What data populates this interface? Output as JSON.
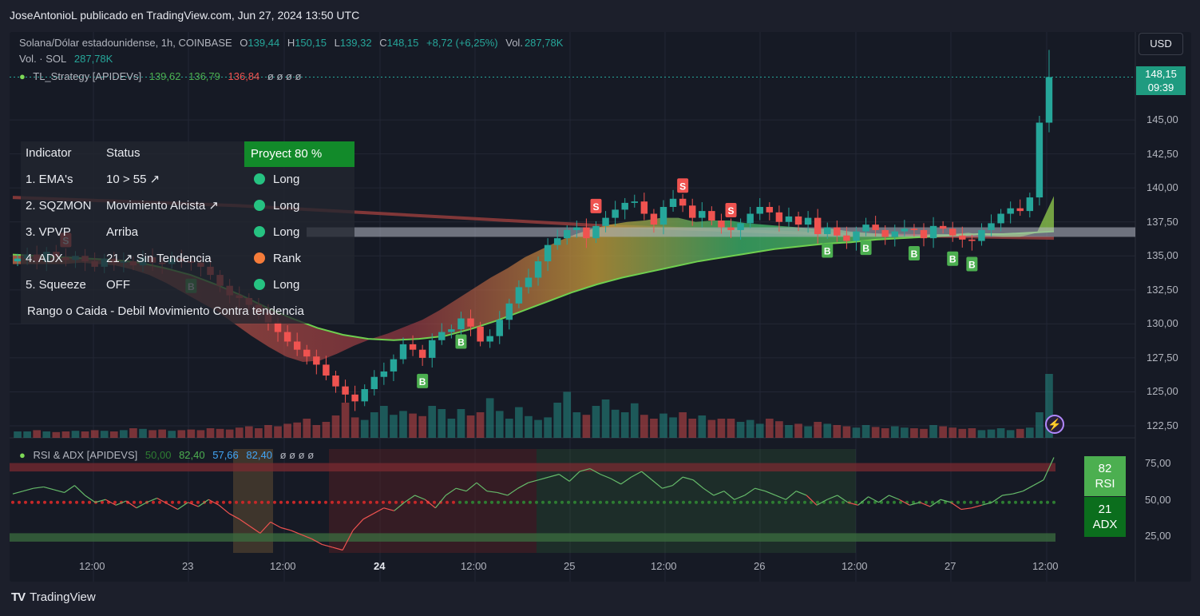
{
  "header": {
    "byline": "JoseAntonioL publicado en TradingView.com, Jun 27, 2024 13:50 UTC"
  },
  "legend": {
    "symbol": "Solana/Dólar estadounidense, 1h, COINBASE",
    "o_label": "O",
    "o_value": "139,44",
    "h_label": "H",
    "h_value": "150,15",
    "l_label": "L",
    "l_value": "139,32",
    "c_label": "C",
    "c_value": "148,15",
    "change": "+8,72 (+6,25%)",
    "vol_label": "Vol.",
    "vol_value": "287,78K",
    "vol_sol_label": "Vol. · SOL",
    "vol_sol_value": "287,78K",
    "strategy_label": "TL_Strategy [APIDEVs]",
    "strategy_v1": "139,62",
    "strategy_v2": "136,79",
    "strategy_v3": "136,84",
    "strategy_empty": "ø ø ø ø",
    "rsi_label": "RSI & ADX [APIDEVS]",
    "rsi_v1": "50,00",
    "rsi_v2": "82,40",
    "rsi_v3": "57,66",
    "rsi_v4": "82,40",
    "rsi_empty": "ø ø ø ø"
  },
  "indicator_table": {
    "col_indicator": "Indicator",
    "col_status": "Status",
    "projection": "Proyect 80 %",
    "rows": [
      {
        "name": "1. EMA's",
        "status": "10 > 55 ↗",
        "signal": "Long",
        "dot": "#26c281"
      },
      {
        "name": "2. SQZMON",
        "status": "Movimiento Alcista ↗",
        "signal": "Long",
        "dot": "#26c281"
      },
      {
        "name": "3. VPVP",
        "status": "Arriba",
        "signal": "Long",
        "dot": "#26c281"
      },
      {
        "name": "4. ADX",
        "status": "21 ↗ Sin Tendencia",
        "signal": "Rank",
        "dot": "#f57c3a"
      },
      {
        "name": "5. Squeeze",
        "status": "OFF",
        "signal": "Long",
        "dot": "#26c281"
      }
    ],
    "footer": "Rango o Caida - Debil Movimiento Contra tendencia"
  },
  "controls": {
    "currency": "USD",
    "last_price": "148,15",
    "countdown": "09:39",
    "bolt_icon": "lightning-icon"
  },
  "rsi_panel": {
    "rsi_value": "82",
    "rsi_label": "RSI",
    "adx_value": "21",
    "adx_label": "ADX",
    "y_ticks": [
      "75,00",
      "50,00",
      "25,00"
    ]
  },
  "branding": {
    "logo": "TV",
    "name": "TradingView"
  },
  "colors": {
    "up": "#26a69a",
    "down": "#ef5350",
    "rsi_box": "#4caf50",
    "adx_box": "#0b6e1d",
    "projection": "#128a2a"
  },
  "chart_data": {
    "type": "candlestick",
    "symbol": "SOL/USD",
    "timeframe": "1h",
    "ylim": [
      121.5,
      151
    ],
    "y_ticks": [
      "145,00",
      "142,50",
      "140,00",
      "137,50",
      "135,00",
      "132,50",
      "130,00",
      "127,50",
      "125,00",
      "122,50"
    ],
    "x_ticks": [
      {
        "label": "12:00",
        "bold": false
      },
      {
        "label": "23",
        "bold": false
      },
      {
        "label": "12:00",
        "bold": false
      },
      {
        "label": "24",
        "bold": true
      },
      {
        "label": "12:00",
        "bold": false
      },
      {
        "label": "25",
        "bold": false
      },
      {
        "label": "12:00",
        "bold": false
      },
      {
        "label": "26",
        "bold": false
      },
      {
        "label": "12:00",
        "bold": false
      },
      {
        "label": "27",
        "bold": false
      },
      {
        "label": "12:00",
        "bold": false
      }
    ],
    "close_path": [
      134.8,
      135.1,
      134.6,
      135.3,
      134.9,
      134.7,
      135.0,
      134.6,
      134.2,
      134.8,
      134.5,
      134.6,
      134.3,
      134.9,
      134.5,
      134.4,
      134.8,
      134.6,
      134.5,
      134.2,
      133.6,
      132.8,
      132.1,
      131.9,
      131.4,
      130.8,
      130.1,
      129.4,
      128.7,
      128.1,
      127.6,
      127.0,
      126.2,
      125.4,
      124.8,
      124.3,
      125.2,
      126.1,
      126.5,
      127.4,
      128.5,
      128.1,
      127.5,
      128.8,
      129.4,
      129.6,
      130.4,
      129.8,
      128.7,
      129.1,
      130.3,
      131.5,
      132.7,
      133.4,
      134.6,
      135.8,
      136.3,
      136.9,
      137.1,
      136.3,
      137.2,
      137.8,
      138.4,
      138.9,
      139.0,
      138.1,
      137.3,
      138.6,
      139.2,
      138.7,
      137.8,
      138.3,
      137.6,
      137.1,
      136.9,
      137.4,
      138.1,
      138.6,
      138.2,
      137.5,
      137.9,
      137.3,
      137.8,
      136.6,
      137.1,
      136.5,
      136.1,
      136.8,
      137.3,
      136.9,
      136.4,
      136.8,
      137.0,
      136.9,
      136.3,
      137.2,
      137.0,
      136.5,
      136.2,
      136.1,
      136.9,
      137.4,
      138.1,
      138.5,
      138.3,
      139.3,
      144.8,
      148.15
    ],
    "volume_rel": [
      0.1,
      0.1,
      0.12,
      0.1,
      0.09,
      0.1,
      0.11,
      0.1,
      0.12,
      0.11,
      0.1,
      0.12,
      0.15,
      0.14,
      0.12,
      0.13,
      0.11,
      0.12,
      0.13,
      0.12,
      0.15,
      0.14,
      0.13,
      0.16,
      0.18,
      0.15,
      0.2,
      0.18,
      0.22,
      0.24,
      0.3,
      0.2,
      0.25,
      0.35,
      0.55,
      0.32,
      0.28,
      0.4,
      0.5,
      0.36,
      0.42,
      0.38,
      0.34,
      0.5,
      0.45,
      0.3,
      0.45,
      0.35,
      0.4,
      0.62,
      0.42,
      0.3,
      0.48,
      0.34,
      0.28,
      0.32,
      0.55,
      0.72,
      0.4,
      0.36,
      0.5,
      0.6,
      0.44,
      0.4,
      0.54,
      0.36,
      0.3,
      0.38,
      0.32,
      0.4,
      0.3,
      0.35,
      0.28,
      0.3,
      0.3,
      0.25,
      0.28,
      0.22,
      0.3,
      0.26,
      0.2,
      0.22,
      0.18,
      0.25,
      0.22,
      0.2,
      0.18,
      0.16,
      0.2,
      0.17,
      0.15,
      0.18,
      0.16,
      0.15,
      0.14,
      0.2,
      0.18,
      0.16,
      0.14,
      0.15,
      0.12,
      0.13,
      0.15,
      0.12,
      0.14,
      0.16,
      0.4,
      1.0
    ],
    "ema_fast": [
      134.4,
      134.4,
      134.4,
      134.4,
      134.5,
      134.4,
      134.3,
      134.0,
      133.6,
      133.0,
      132.3,
      131.6,
      130.9,
      130.0,
      129.1,
      128.3,
      127.6,
      127.2,
      127.3,
      127.8,
      128.4,
      128.9,
      129.3,
      129.8,
      130.3,
      131.0,
      131.8,
      132.6,
      133.4,
      134.1,
      134.9,
      135.5,
      136.1,
      136.6,
      137.0,
      137.3,
      137.5,
      137.6,
      137.8,
      137.8,
      137.5,
      137.6,
      137.6,
      137.4,
      137.3,
      137.2,
      137.1,
      137.0,
      137.0,
      136.8,
      136.7,
      136.6,
      136.5,
      136.5,
      136.6,
      136.6,
      136.7,
      136.5,
      136.4,
      136.4,
      136.7,
      139.4
    ],
    "ema_slow": [
      135.1,
      135.0,
      134.9,
      134.8,
      134.7,
      134.5,
      134.1,
      133.6,
      132.9,
      132.1,
      131.2,
      130.4,
      129.7,
      129.2,
      128.9,
      128.8,
      128.9,
      129.1,
      129.6,
      130.2,
      130.9,
      131.6,
      132.3,
      132.9,
      133.4,
      133.8,
      134.2,
      134.6,
      134.9,
      135.2,
      135.5,
      135.7,
      135.9,
      136.0,
      136.2,
      136.3,
      136.4,
      136.5,
      136.6,
      136.6,
      136.7,
      136.8
    ],
    "long_ema": [
      139.3,
      139.1,
      138.9,
      138.7,
      138.4,
      138.1,
      137.8,
      137.5,
      137.2,
      137.0,
      136.8,
      136.6,
      136.5,
      136.4,
      136.3
    ],
    "markers": [
      {
        "t": "S",
        "i": 5
      },
      {
        "t": "B",
        "i": 18
      },
      {
        "t": "B",
        "i": 42
      },
      {
        "t": "B",
        "i": 46
      },
      {
        "t": "S",
        "i": 60
      },
      {
        "t": "S",
        "i": 69
      },
      {
        "t": "S",
        "i": 74
      },
      {
        "t": "B",
        "i": 84
      },
      {
        "t": "B",
        "i": 88
      },
      {
        "t": "B",
        "i": 93
      },
      {
        "t": "B",
        "i": 97
      },
      {
        "t": "B",
        "i": 99
      }
    ],
    "rsi": [
      56,
      58,
      60,
      61,
      59,
      57,
      62,
      55,
      50,
      52,
      48,
      51,
      46,
      50,
      53,
      49,
      45,
      50,
      47,
      52,
      48,
      42,
      38,
      33,
      28,
      36,
      32,
      30,
      27,
      24,
      20,
      18,
      16,
      30,
      38,
      42,
      46,
      44,
      50,
      55,
      52,
      46,
      55,
      60,
      58,
      64,
      58,
      57,
      55,
      60,
      64,
      66,
      68,
      70,
      65,
      72,
      74,
      70,
      67,
      63,
      68,
      72,
      66,
      60,
      62,
      68,
      66,
      60,
      55,
      58,
      52,
      55,
      60,
      58,
      55,
      52,
      58,
      55,
      48,
      52,
      55,
      50,
      48,
      54,
      50,
      55,
      52,
      48,
      50,
      47,
      52,
      50,
      45,
      46,
      48,
      50,
      55,
      56,
      58,
      62,
      66,
      82
    ],
    "rsi_ylim": [
      14,
      88
    ]
  }
}
